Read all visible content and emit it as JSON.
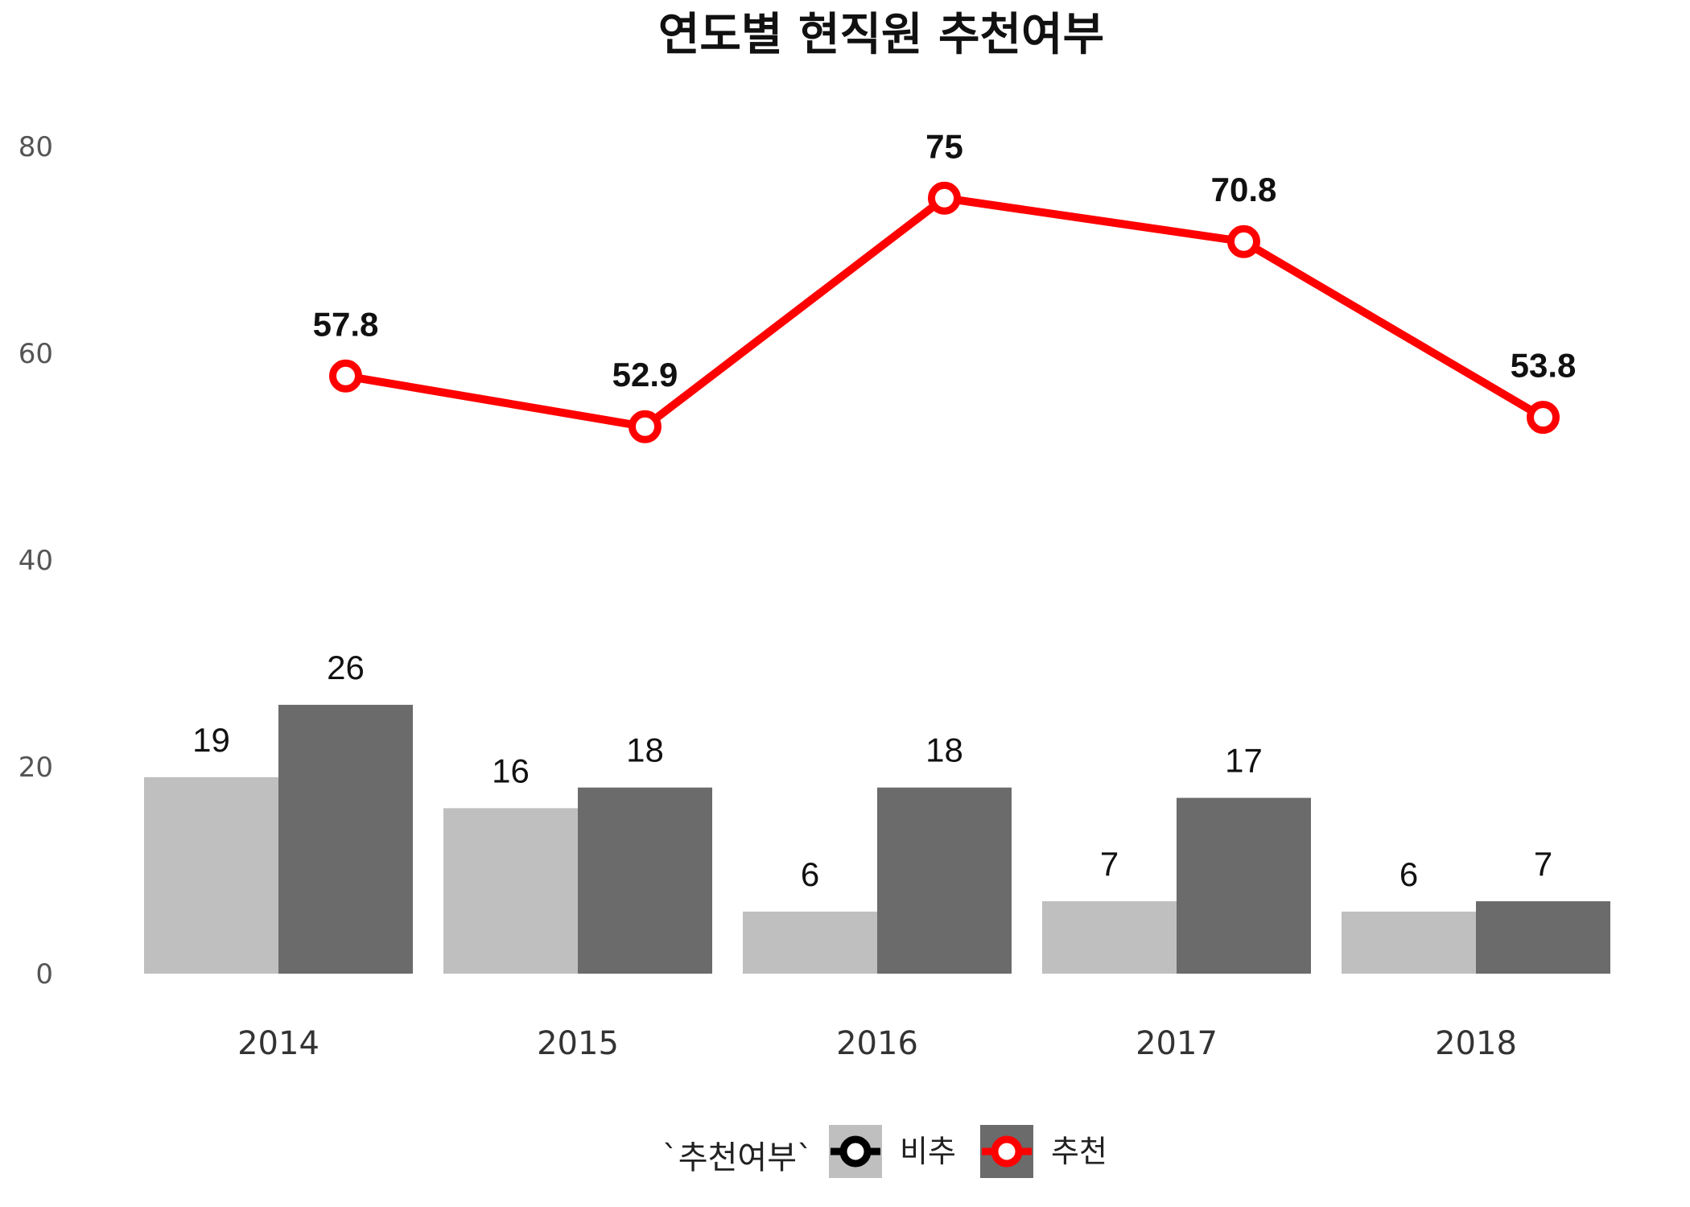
{
  "chart_data": {
    "type": "bar",
    "title": "연도별 현직원 추천여부",
    "categories": [
      "2014",
      "2015",
      "2016",
      "2017",
      "2018"
    ],
    "ylim": [
      0,
      85
    ],
    "yticks": [
      "0",
      "20",
      "40",
      "60",
      "80"
    ],
    "grid": false,
    "series": [
      {
        "name": "비추",
        "type": "bar",
        "color": "#bfbfbf",
        "values": [
          19,
          16,
          6,
          7,
          6
        ],
        "labels": [
          "19",
          "16",
          "6",
          "7",
          "6"
        ]
      },
      {
        "name": "추천",
        "type": "bar",
        "color": "#6b6b6b",
        "values": [
          26,
          18,
          18,
          17,
          7
        ],
        "labels": [
          "26",
          "18",
          "18",
          "17",
          "7"
        ]
      }
    ],
    "line": {
      "color": "#ff0000",
      "values": [
        57.8,
        52.9,
        75,
        70.8,
        53.8
      ],
      "labels": [
        "57.8",
        "52.9",
        "75",
        "70.8",
        "53.8"
      ]
    },
    "legend": {
      "title": "`추천여부`",
      "placement": "bottom",
      "items": [
        {
          "label": "비추",
          "fill": "#bfbfbf",
          "marker": "#000000"
        },
        {
          "label": "추천",
          "fill": "#6b6b6b",
          "marker": "#ff0000"
        }
      ]
    }
  }
}
